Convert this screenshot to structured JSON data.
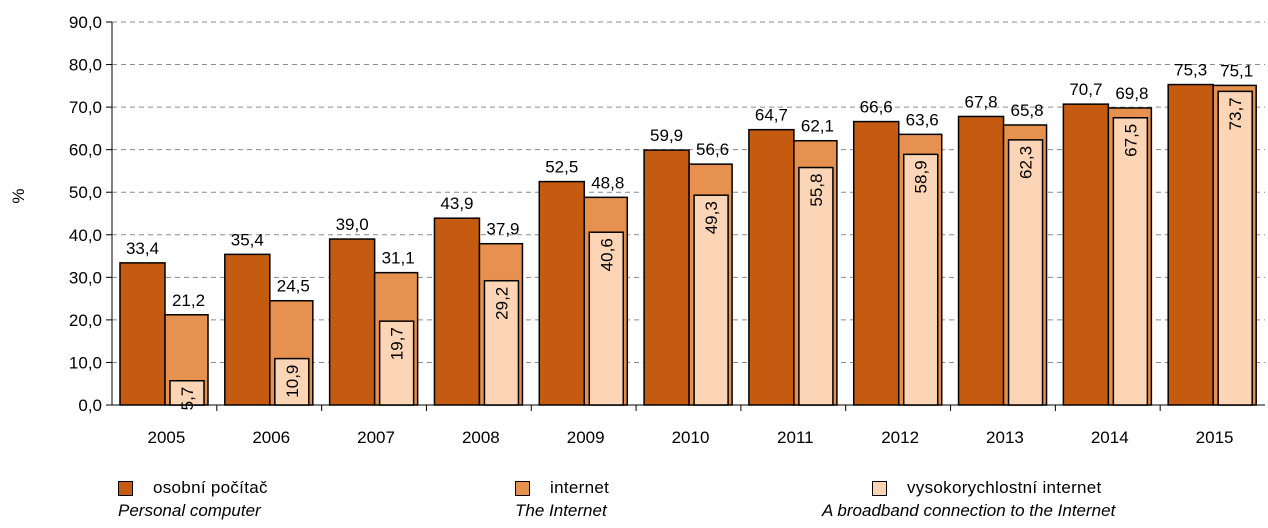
{
  "chart_data": {
    "type": "bar",
    "ylabel": "%",
    "ylim": [
      0,
      90
    ],
    "yticks": [
      "0,0",
      "10,0",
      "20,0",
      "30,0",
      "40,0",
      "50,0",
      "60,0",
      "70,0",
      "80,0",
      "90,0"
    ],
    "grid": true,
    "categories": [
      "2005",
      "2006",
      "2007",
      "2008",
      "2009",
      "2010",
      "2011",
      "2012",
      "2013",
      "2014",
      "2015"
    ],
    "series": [
      {
        "name": "osobní počítač",
        "name_en": "Personal computer",
        "color": "#C55A11",
        "values": [
          33.4,
          35.4,
          39.0,
          43.9,
          52.5,
          59.9,
          64.7,
          66.6,
          67.8,
          70.7,
          75.3
        ],
        "labels": [
          "33,4",
          "35,4",
          "39,0",
          "43,9",
          "52,5",
          "59,9",
          "64,7",
          "66,6",
          "67,8",
          "70,7",
          "75,3"
        ]
      },
      {
        "name": "internet",
        "name_en": "The Internet",
        "color": "#E69150",
        "values": [
          21.2,
          24.5,
          31.1,
          37.9,
          48.8,
          56.6,
          62.1,
          63.6,
          65.8,
          69.8,
          75.1
        ],
        "labels": [
          "21,2",
          "24,5",
          "31,1",
          "37,9",
          "48,8",
          "56,6",
          "62,1",
          "63,6",
          "65,8",
          "69,8",
          "75,1"
        ]
      },
      {
        "name": "vysokorychlostní internet",
        "name_en": "A broadband connection to the Internet",
        "color": "#FBD5B5",
        "values": [
          5.7,
          10.9,
          19.7,
          29.2,
          40.6,
          49.3,
          55.8,
          58.9,
          62.3,
          67.5,
          73.7
        ],
        "labels": [
          "5,7",
          "10,9",
          "19,7",
          "29,2",
          "40,6",
          "49,3",
          "55,8",
          "58,9",
          "62,3",
          "67,5",
          "73,7"
        ]
      }
    ],
    "legend": "bottom"
  }
}
